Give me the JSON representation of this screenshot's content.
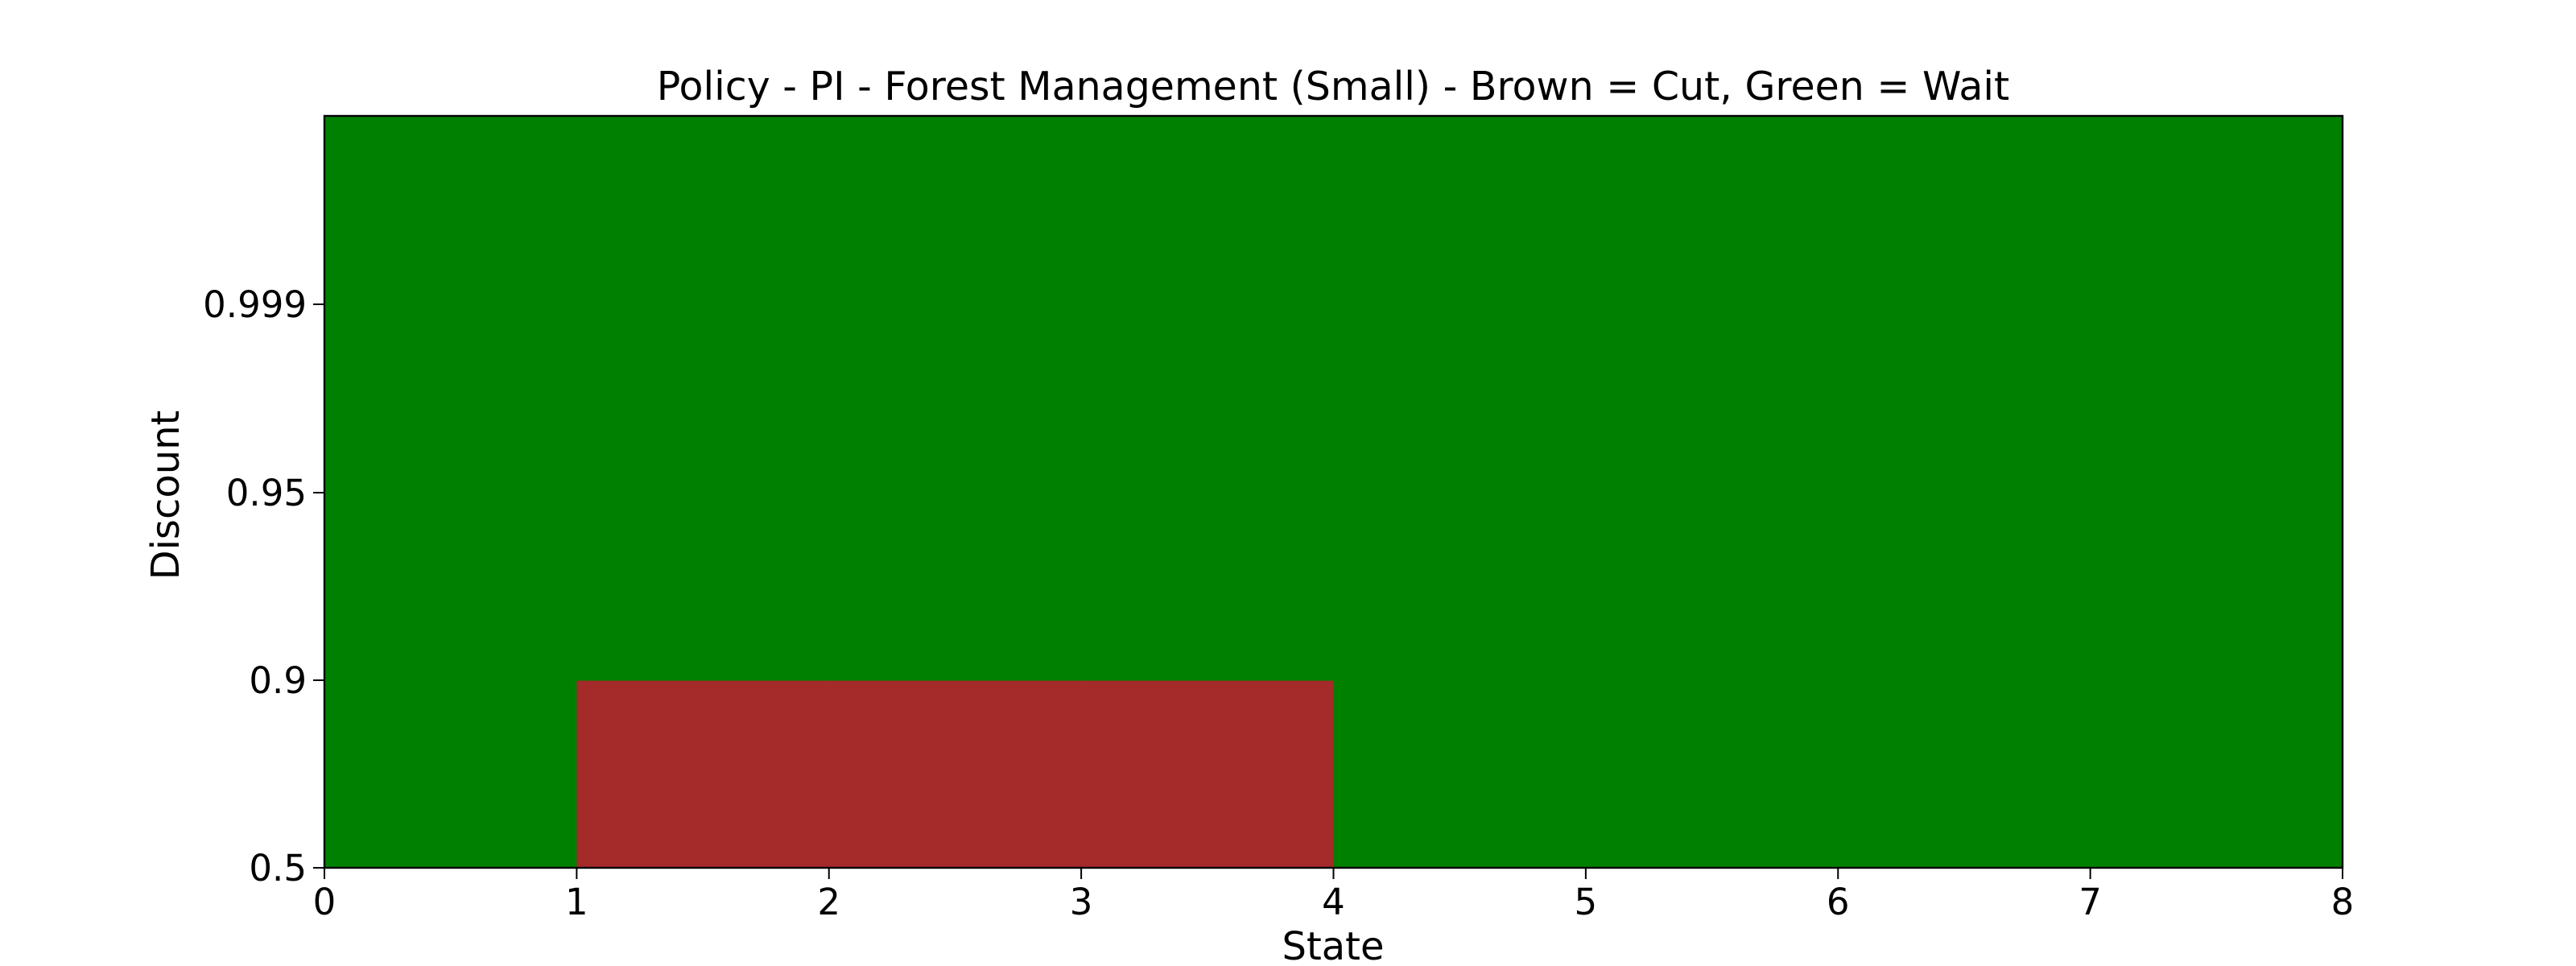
{
  "chart_data": {
    "type": "heatmap",
    "title": "Policy - PI - Forest Management (Small) - Brown = Cut, Green = Wait",
    "xlabel": "State",
    "ylabel": "Discount",
    "x_ticks": [
      0,
      1,
      2,
      3,
      4,
      5,
      6,
      7,
      8
    ],
    "x_range": [
      0,
      8
    ],
    "y_tick_labels": [
      "0.5",
      "0.9",
      "0.95",
      "0.999"
    ],
    "y_levels": 4,
    "colors": {
      "cut": "#a52a2a",
      "wait": "#008000"
    },
    "cells": [
      {
        "discount": "0.5",
        "policy": [
          "wait",
          "cut",
          "cut",
          "cut",
          "wait",
          "wait",
          "wait",
          "wait"
        ]
      },
      {
        "discount": "0.9",
        "policy": [
          "wait",
          "wait",
          "wait",
          "wait",
          "wait",
          "wait",
          "wait",
          "wait"
        ]
      },
      {
        "discount": "0.95",
        "policy": [
          "wait",
          "wait",
          "wait",
          "wait",
          "wait",
          "wait",
          "wait",
          "wait"
        ]
      },
      {
        "discount": "0.999",
        "policy": [
          "wait",
          "wait",
          "wait",
          "wait",
          "wait",
          "wait",
          "wait",
          "wait"
        ]
      }
    ],
    "grid": false,
    "legend": "none"
  }
}
